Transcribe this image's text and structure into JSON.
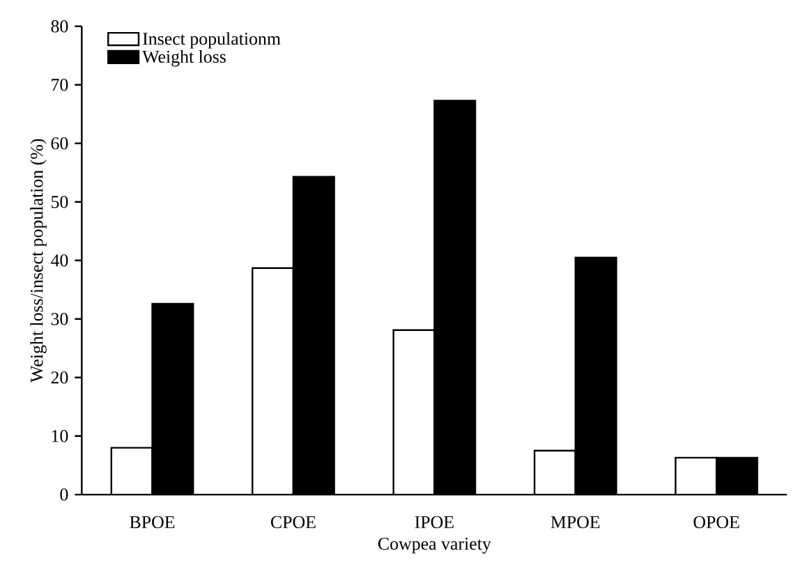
{
  "chart_data": {
    "type": "bar",
    "xlabel": "Cowpea variety",
    "ylabel": "Weight loss/insect population (%)",
    "categories": [
      "BPOE",
      "CPOE",
      "IPOE",
      "MPOE",
      "OPOE"
    ],
    "series": [
      {
        "name": "Insect populationm",
        "color": "#ffffff",
        "values": [
          8.0,
          38.7,
          28.1,
          7.5,
          6.3
        ]
      },
      {
        "name": "Weight loss",
        "color": "#000000",
        "values": [
          32.6,
          54.3,
          67.3,
          40.5,
          6.3
        ]
      }
    ],
    "ylim": [
      0,
      80
    ],
    "yticks": [
      0,
      10,
      20,
      30,
      40,
      50,
      60,
      70,
      80
    ],
    "grid": false,
    "legend": "top left"
  }
}
